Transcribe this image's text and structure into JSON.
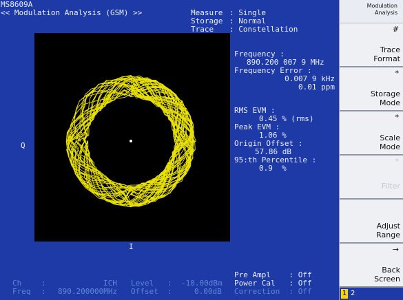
{
  "model": "MS8609A",
  "mode_title": "<< Modulation Analysis (GSM) >>",
  "settings": {
    "measure_label": "Measure",
    "measure_value": ": Single",
    "storage_label": "Storage",
    "storage_value": ": Normal",
    "trace_label": "Trace",
    "trace_value": ": Constellation"
  },
  "results": {
    "frequency_label": "Frequency :",
    "frequency_value": "890.200 007 9 MHz",
    "freq_error_label": "Frequency Error :",
    "freq_error_khz": "0.007 9 kHz",
    "freq_error_ppm": "0.01 ppm",
    "rms_evm_label": "RMS EVM :",
    "rms_evm_value": "0.45 % (rms)",
    "peak_evm_label": "Peak EVM :",
    "peak_evm_value": "1.06 %",
    "origin_offset_label": "Origin Offset :",
    "origin_offset_value": "57.86 dB",
    "percentile_label": "95:th Percentile :",
    "percentile_value": "0.9  %"
  },
  "axes": {
    "q_label": "Q",
    "i_label": "I"
  },
  "status": {
    "ch_label": "Ch",
    "ch_sep": ":",
    "ch_value": "ICH",
    "level_label": "Level",
    "level_sep": ":",
    "level_value": "-10.00dBm",
    "freq_label": "Freq",
    "freq_sep": ":",
    "freq_value": "890.200000MHz",
    "offset_label": "Offset",
    "offset_sep": ":",
    "offset_value": "0.00dB",
    "pre_ampl": "Pre Ampl    : Off",
    "power_cal": "Power Cal   : Off",
    "correction": "Correction  : Off"
  },
  "softkeys": {
    "header": "Modulation\nAnalysis",
    "keys": [
      {
        "label": "Trace\nFormat",
        "marker": "#"
      },
      {
        "label": "Storage\nMode",
        "marker": "*"
      },
      {
        "label": "Scale\nMode",
        "marker": "*"
      },
      {
        "label": "Filter",
        "marker": "*"
      },
      {
        "label": "Adjust\nRange",
        "marker": ""
      },
      {
        "label": "Back\nScreen",
        "marker": "→"
      }
    ],
    "page_current": "1",
    "page_other": "2"
  },
  "colors": {
    "screen_bg": "#1e3aa6",
    "trace": "#e8e000",
    "highlight": "#ffd400"
  }
}
